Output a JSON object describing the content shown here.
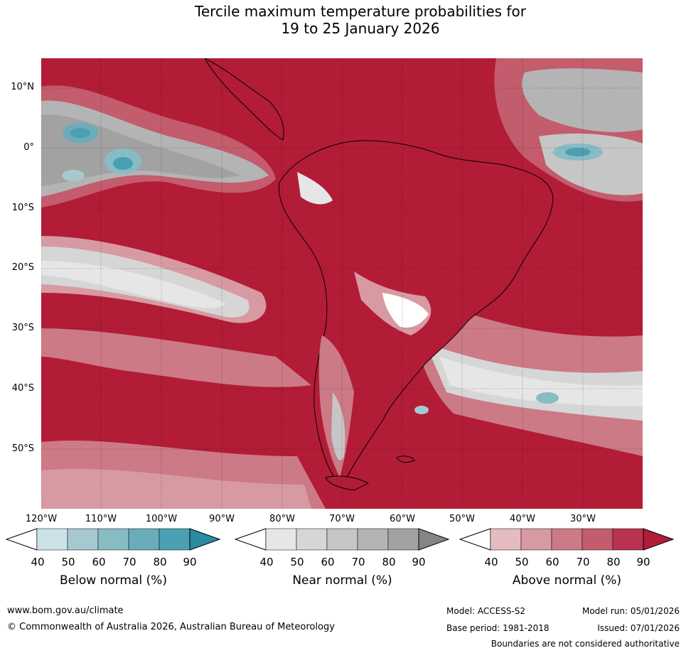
{
  "title": {
    "line1": "Tercile maximum temperature probabilities for",
    "line2": "19 to 25 January 2026"
  },
  "map": {
    "lat_labels": [
      "10°N",
      "0°",
      "10°S",
      "20°S",
      "30°S",
      "40°S",
      "50°S"
    ],
    "lon_labels": [
      "120°W",
      "110°W",
      "100°W",
      "90°W",
      "80°W",
      "70°W",
      "60°W",
      "50°W",
      "40°W",
      "30°W"
    ]
  },
  "colorbars": {
    "below": {
      "title": "Below normal (%)",
      "ticks": [
        "40",
        "50",
        "60",
        "70",
        "80",
        "90"
      ],
      "colors": [
        "#ffffff",
        "#cbe3e8",
        "#a6c9cf",
        "#88bcc4",
        "#6aacba",
        "#4aa0b2",
        "#2a8ba1"
      ]
    },
    "near": {
      "title": "Near normal (%)",
      "ticks": [
        "40",
        "50",
        "60",
        "70",
        "80",
        "90"
      ],
      "colors": [
        "#ffffff",
        "#e6e6e6",
        "#d6d6d6",
        "#c6c6c6",
        "#b4b4b4",
        "#a2a2a2",
        "#858585"
      ]
    },
    "above": {
      "title": "Above normal (%)",
      "ticks": [
        "40",
        "50",
        "60",
        "70",
        "80",
        "90"
      ],
      "colors": [
        "#ffffff",
        "#e6bbc0",
        "#d89aa2",
        "#cc7a86",
        "#c35c6c",
        "#b83350",
        "#b21c37"
      ]
    }
  },
  "footer": {
    "website": "www.bom.gov.au/climate",
    "copyright": "© Commonwealth of Australia 2026, Australian Bureau of Meteorology",
    "model": "Model: ACCESS-S2",
    "model_run": "Model run: 05/01/2026",
    "base_period": "Base period: 1981-2018",
    "issued": "Issued: 07/01/2026",
    "disclaimer": "Boundaries are not considered authoritative"
  }
}
